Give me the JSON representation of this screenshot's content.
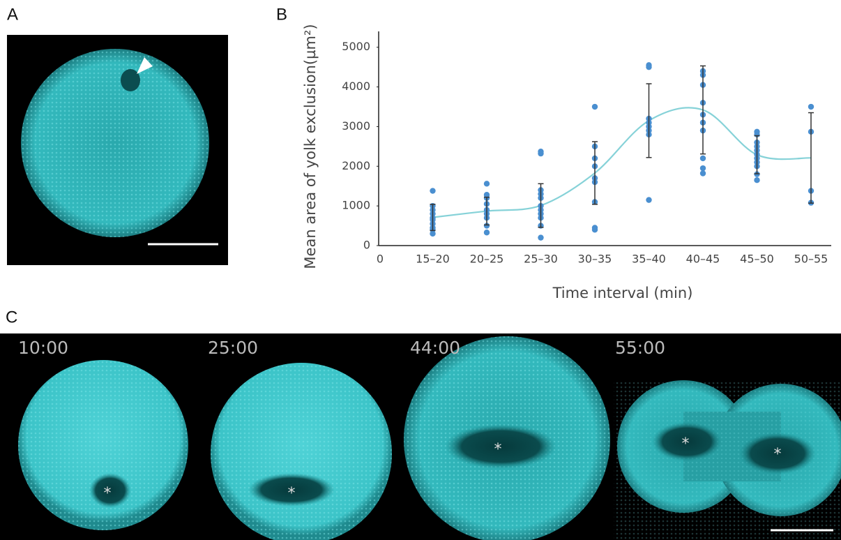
{
  "panels": {
    "a": "A",
    "b": "B",
    "c": "C"
  },
  "chart_data": {
    "type": "scatter",
    "y_label": "Mean area of yolk exclusion(µm²)",
    "x_label": "Time interval (min)",
    "x_origin_label": "0",
    "categories": [
      "15–20",
      "20–25",
      "25–30",
      "30–35",
      "35–40",
      "40–45",
      "45–50",
      "50–55"
    ],
    "points": [
      [
        1380,
        1000,
        900,
        800,
        700,
        650,
        550,
        450,
        400,
        300
      ],
      [
        1560,
        1280,
        1200,
        1050,
        900,
        800,
        700,
        500,
        330
      ],
      [
        2370,
        2320,
        1400,
        1300,
        1200,
        1000,
        900,
        800,
        700,
        500,
        200
      ],
      [
        3500,
        2500,
        2200,
        2000,
        1700,
        1600,
        1100,
        450,
        400
      ],
      [
        4550,
        4500,
        3200,
        3100,
        3000,
        2900,
        2800,
        1150
      ],
      [
        4400,
        4300,
        4050,
        3600,
        3300,
        3100,
        2900,
        2200,
        1950,
        1820
      ],
      [
        2870,
        2800,
        2600,
        2500,
        2400,
        2300,
        2200,
        2100,
        2000,
        1800,
        1650
      ],
      [
        3500,
        2870,
        1380,
        1080
      ]
    ],
    "mean": [
      710,
      870,
      1010,
      1830,
      3150,
      3420,
      2290,
      2210
    ],
    "error": [
      330,
      350,
      550,
      790,
      930,
      1110,
      480,
      1140
    ],
    "point_color": "#4a8fd0",
    "curve_color": "#86d2d8",
    "error_color": "#333333",
    "ylim": [
      0,
      5400
    ],
    "yticks": [
      0,
      1000,
      2000,
      3000,
      4000,
      5000
    ]
  },
  "time_labels": [
    "10:00",
    "25:00",
    "44:00",
    "55:00"
  ],
  "markers": [
    "*",
    "*",
    "*",
    "*",
    "*"
  ]
}
